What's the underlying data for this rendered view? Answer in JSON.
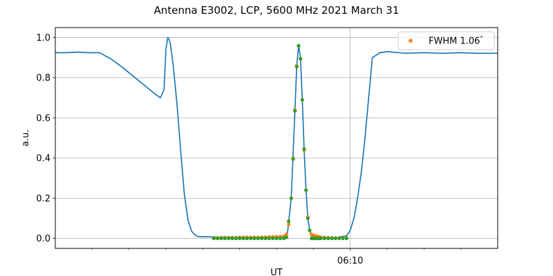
{
  "chart_data": {
    "type": "line",
    "title": "Antenna E3002, LCP, 5600 MHz 2021 March 31",
    "xlabel": "UT",
    "ylabel": "a.u.",
    "x_units": "minutes after 06:00 UT",
    "xlim": [
      2.0,
      14.0
    ],
    "ylim": [
      -0.05,
      1.05
    ],
    "yticks": [
      0.0,
      0.2,
      0.4,
      0.6,
      0.8,
      1.0
    ],
    "ytick_labels": [
      "0.0",
      "0.2",
      "0.4",
      "0.6",
      "0.8",
      "1.0"
    ],
    "xticks_labeled": [
      {
        "value": 10.0,
        "label": "06:10"
      }
    ],
    "xticks_minor": [
      3.0,
      4.0,
      5.0,
      6.0,
      7.0,
      8.0,
      9.0,
      11.0,
      12.0,
      13.0
    ],
    "grid": true,
    "legend_position": "top-right",
    "colors": {
      "line": "#1f77b4",
      "fit": "#ff7f0e",
      "samples": "#2ca02c"
    },
    "legend": [
      {
        "label": "FWHM 1.06$^\\circ$",
        "text": "FWHM 1.06",
        "sup": "°",
        "color": "#ff7f0e"
      }
    ],
    "series": [
      {
        "kind": "line",
        "color": "#1f77b4",
        "x": [
          2.0,
          2.3,
          2.6,
          2.9,
          3.2,
          3.5,
          3.8,
          4.1,
          4.4,
          4.7,
          4.85,
          4.95,
          5.0,
          5.05,
          5.08,
          5.12,
          5.2,
          5.3,
          5.4,
          5.5,
          5.6,
          5.7,
          5.8,
          5.9,
          6.0,
          6.2,
          6.4,
          6.8,
          7.2,
          7.6,
          8.0,
          8.2,
          8.3,
          8.4,
          8.5,
          8.55,
          8.6,
          8.65,
          8.7,
          8.75,
          8.8,
          8.85,
          8.9,
          8.95,
          9.0,
          9.05,
          9.1,
          9.2,
          9.3,
          9.4,
          9.6,
          9.8,
          9.9,
          10.0,
          10.1,
          10.2,
          10.3,
          10.4,
          10.5,
          10.55,
          10.6,
          10.8,
          11.0,
          11.5,
          12.0,
          12.5,
          13.0,
          13.5,
          14.0
        ],
        "y": [
          0.925,
          0.925,
          0.928,
          0.925,
          0.925,
          0.895,
          0.855,
          0.81,
          0.765,
          0.72,
          0.7,
          0.74,
          0.94,
          1.0,
          0.995,
          0.97,
          0.86,
          0.67,
          0.44,
          0.22,
          0.09,
          0.035,
          0.015,
          0.008,
          0.008,
          0.008,
          0.005,
          0.003,
          0.003,
          0.003,
          0.003,
          0.008,
          0.03,
          0.2,
          0.64,
          0.86,
          0.96,
          0.9,
          0.69,
          0.44,
          0.24,
          0.1,
          0.04,
          0.01,
          0.003,
          0.002,
          0.002,
          0.002,
          0.002,
          0.002,
          0.002,
          0.01,
          0.012,
          0.04,
          0.1,
          0.2,
          0.33,
          0.5,
          0.7,
          0.8,
          0.9,
          0.925,
          0.93,
          0.922,
          0.925,
          0.922,
          0.925,
          0.922,
          0.922
        ]
      },
      {
        "kind": "scatter",
        "name": "FWHM 1.06°",
        "color": "#ff7f0e",
        "x": [
          6.3,
          6.4,
          6.5,
          6.6,
          6.7,
          6.8,
          6.9,
          7.0,
          7.1,
          7.2,
          7.3,
          7.4,
          7.5,
          7.6,
          7.7,
          7.8,
          7.9,
          8.0,
          8.1,
          8.2,
          8.27,
          8.33,
          8.4,
          8.45,
          8.5,
          8.55,
          8.6,
          8.65,
          8.7,
          8.75,
          8.8,
          8.85,
          8.9,
          8.95,
          9.0,
          9.05,
          9.1,
          9.15,
          9.2,
          9.3,
          9.4,
          9.5,
          9.6,
          9.7,
          9.8,
          9.9
        ],
        "y": [
          0.003,
          0.003,
          0.004,
          0.004,
          0.004,
          0.004,
          0.004,
          0.005,
          0.005,
          0.005,
          0.005,
          0.005,
          0.005,
          0.006,
          0.006,
          0.007,
          0.008,
          0.008,
          0.009,
          0.01,
          0.02,
          0.07,
          0.2,
          0.4,
          0.64,
          0.86,
          0.96,
          0.895,
          0.69,
          0.44,
          0.24,
          0.105,
          0.04,
          0.02,
          0.015,
          0.012,
          0.01,
          0.008,
          0.006,
          0.005,
          0.004,
          0.003,
          0.002,
          0.002,
          0.002,
          0.002
        ]
      },
      {
        "kind": "scatter",
        "color": "#2ca02c",
        "x": [
          6.3,
          6.4,
          6.5,
          6.6,
          6.7,
          6.8,
          6.9,
          7.0,
          7.1,
          7.2,
          7.3,
          7.4,
          7.5,
          7.6,
          7.7,
          7.8,
          7.9,
          8.0,
          8.1,
          8.2,
          8.27,
          8.33,
          8.4,
          8.45,
          8.5,
          8.55,
          8.6,
          8.65,
          8.7,
          8.75,
          8.8,
          8.85,
          8.9,
          8.95,
          9.0,
          9.05,
          9.1,
          9.15,
          9.2,
          9.3,
          9.4,
          9.5,
          9.6,
          9.7,
          9.8,
          9.9
        ],
        "y": [
          0.0,
          0.0,
          0.0,
          0.0,
          0.0,
          0.0,
          0.0,
          0.0,
          0.0,
          0.0,
          0.0,
          0.0,
          0.0,
          0.0,
          0.0,
          0.0,
          0.0,
          0.0,
          0.0,
          0.0,
          0.005,
          0.085,
          0.2,
          0.395,
          0.635,
          0.855,
          0.96,
          0.895,
          0.69,
          0.445,
          0.24,
          0.1,
          0.04,
          0.0,
          0.0,
          0.0,
          0.0,
          0.0,
          0.0,
          0.0,
          0.0,
          0.0,
          0.0,
          0.0,
          0.0,
          0.0
        ]
      }
    ]
  }
}
